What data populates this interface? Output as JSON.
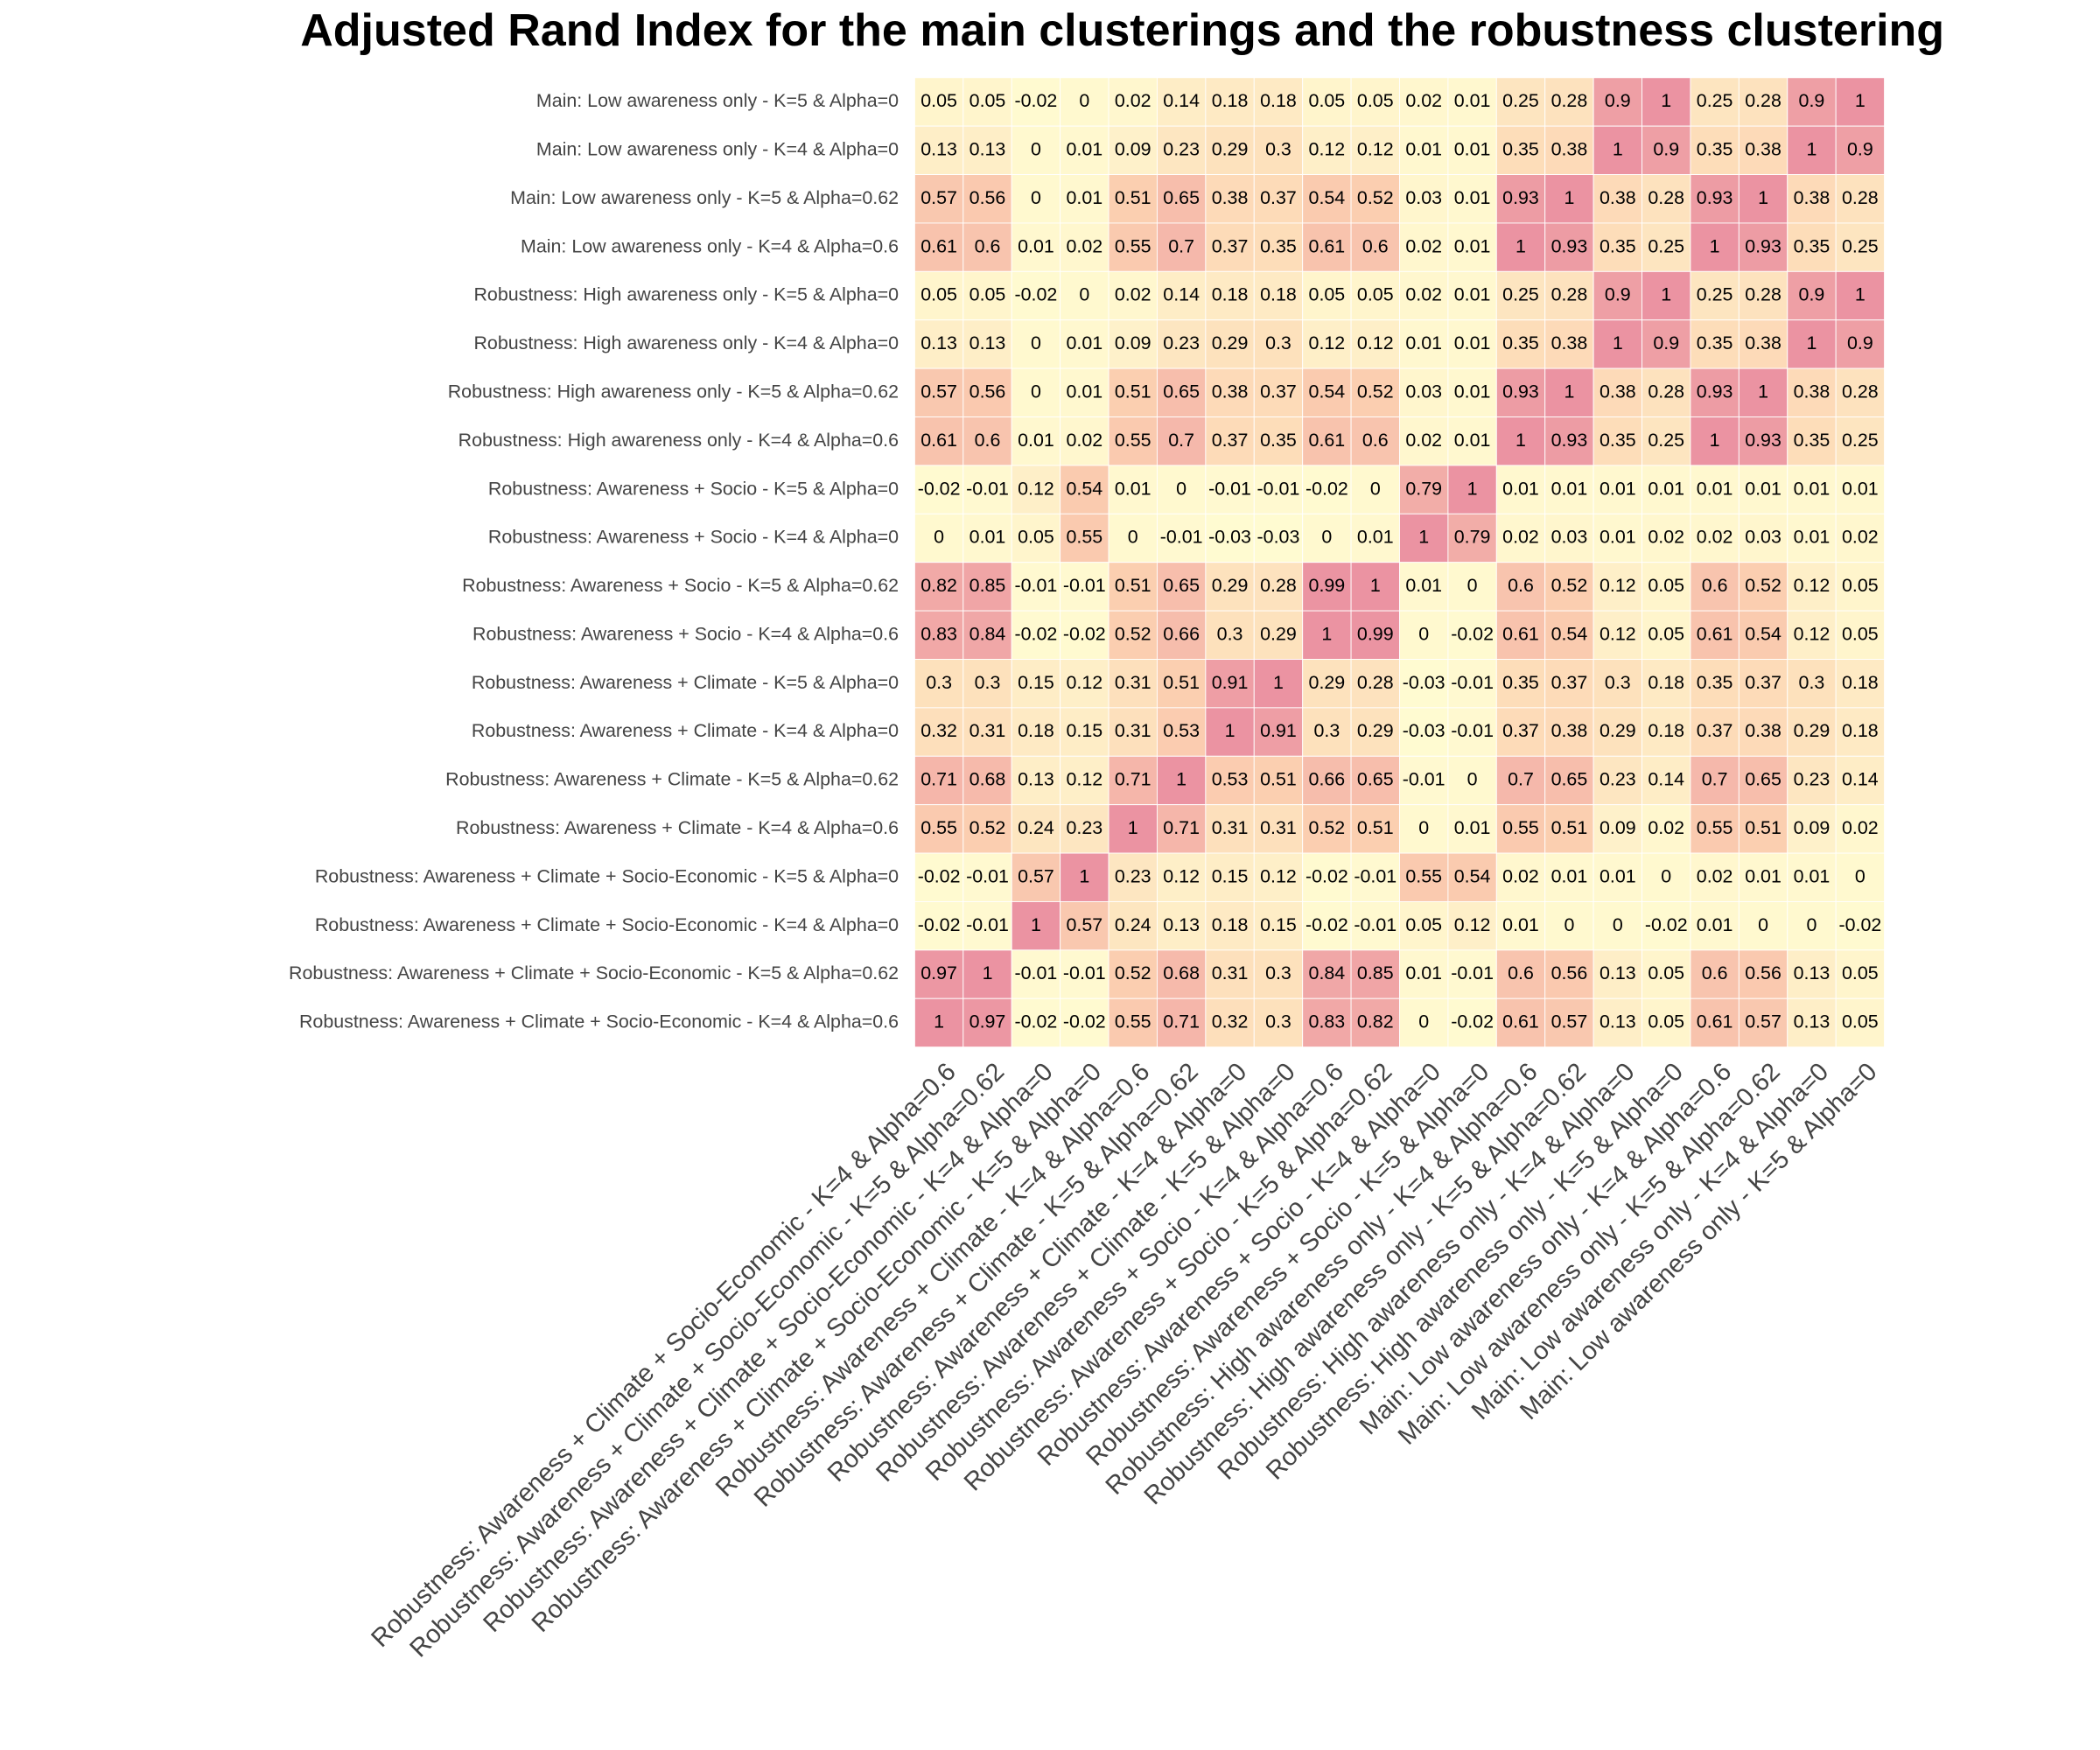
{
  "chart_data": {
    "type": "heatmap",
    "title": "Adjusted Rand Index for the main clusterings and the robustness clustering",
    "y": [
      "Main: Low awareness only - K=5 & Alpha=0",
      "Main: Low awareness only - K=4 & Alpha=0",
      "Main: Low awareness only - K=5 & Alpha=0.62",
      "Main: Low awareness only - K=4 & Alpha=0.6",
      "Robustness: High awareness only - K=5 & Alpha=0",
      "Robustness: High awareness only - K=4 & Alpha=0",
      "Robustness: High awareness only - K=5 & Alpha=0.62",
      "Robustness: High awareness only - K=4 & Alpha=0.6",
      "Robustness: Awareness + Socio - K=5 & Alpha=0",
      "Robustness: Awareness + Socio - K=4 & Alpha=0",
      "Robustness: Awareness + Socio - K=5 & Alpha=0.62",
      "Robustness: Awareness + Socio - K=4 & Alpha=0.6",
      "Robustness: Awareness + Climate - K=5 & Alpha=0",
      "Robustness: Awareness + Climate - K=4 & Alpha=0",
      "Robustness: Awareness + Climate - K=5 & Alpha=0.62",
      "Robustness: Awareness + Climate - K=4 & Alpha=0.6",
      "Robustness: Awareness + Climate + Socio-Economic - K=5 & Alpha=0",
      "Robustness: Awareness + Climate + Socio-Economic - K=4 & Alpha=0",
      "Robustness: Awareness + Climate + Socio-Economic - K=5 & Alpha=0.62",
      "Robustness: Awareness + Climate + Socio-Economic - K=4 & Alpha=0.6"
    ],
    "x": [
      "Robustness: Awareness + Climate + Socio-Economic - K=4 & Alpha=0.6",
      "Robustness: Awareness + Climate + Socio-Economic - K=5 & Alpha=0.62",
      "Robustness: Awareness + Climate + Socio-Economic - K=4 & Alpha=0",
      "Robustness: Awareness + Climate + Socio-Economic - K=5 & Alpha=0",
      "Robustness: Awareness + Climate - K=4 & Alpha=0.6",
      "Robustness: Awareness + Climate - K=5 & Alpha=0.62",
      "Robustness: Awareness + Climate - K=4 & Alpha=0",
      "Robustness: Awareness + Climate - K=5 & Alpha=0",
      "Robustness: Awareness + Socio - K=4 & Alpha=0.6",
      "Robustness: Awareness + Socio - K=5 & Alpha=0.62",
      "Robustness: Awareness + Socio - K=4 & Alpha=0",
      "Robustness: Awareness + Socio - K=5 & Alpha=0",
      "Robustness: High awareness only - K=4 & Alpha=0.6",
      "Robustness: High awareness only - K=5 & Alpha=0.62",
      "Robustness: High awareness only - K=4 & Alpha=0",
      "Robustness: High awareness only - K=5 & Alpha=0",
      "Main: Low awareness only - K=4 & Alpha=0.6",
      "Main: Low awareness only - K=5 & Alpha=0.62",
      "Main: Low awareness only - K=4 & Alpha=0",
      "Main: Low awareness only - K=5 & Alpha=0"
    ],
    "values": [
      [
        0.05,
        0.05,
        -0.02,
        0,
        0.02,
        0.14,
        0.18,
        0.18,
        0.05,
        0.05,
        0.02,
        0.01,
        0.25,
        0.28,
        0.9,
        1,
        0.25,
        0.28,
        0.9,
        1
      ],
      [
        0.13,
        0.13,
        0,
        0.01,
        0.09,
        0.23,
        0.29,
        0.3,
        0.12,
        0.12,
        0.01,
        0.01,
        0.35,
        0.38,
        1,
        0.9,
        0.35,
        0.38,
        1,
        0.9
      ],
      [
        0.57,
        0.56,
        0,
        0.01,
        0.51,
        0.65,
        0.38,
        0.37,
        0.54,
        0.52,
        0.03,
        0.01,
        0.93,
        1,
        0.38,
        0.28,
        0.93,
        1,
        0.38,
        0.28
      ],
      [
        0.61,
        0.6,
        0.01,
        0.02,
        0.55,
        0.7,
        0.37,
        0.35,
        0.61,
        0.6,
        0.02,
        0.01,
        1,
        0.93,
        0.35,
        0.25,
        1,
        0.93,
        0.35,
        0.25
      ],
      [
        0.05,
        0.05,
        -0.02,
        0,
        0.02,
        0.14,
        0.18,
        0.18,
        0.05,
        0.05,
        0.02,
        0.01,
        0.25,
        0.28,
        0.9,
        1,
        0.25,
        0.28,
        0.9,
        1
      ],
      [
        0.13,
        0.13,
        0,
        0.01,
        0.09,
        0.23,
        0.29,
        0.3,
        0.12,
        0.12,
        0.01,
        0.01,
        0.35,
        0.38,
        1,
        0.9,
        0.35,
        0.38,
        1,
        0.9
      ],
      [
        0.57,
        0.56,
        0,
        0.01,
        0.51,
        0.65,
        0.38,
        0.37,
        0.54,
        0.52,
        0.03,
        0.01,
        0.93,
        1,
        0.38,
        0.28,
        0.93,
        1,
        0.38,
        0.28
      ],
      [
        0.61,
        0.6,
        0.01,
        0.02,
        0.55,
        0.7,
        0.37,
        0.35,
        0.61,
        0.6,
        0.02,
        0.01,
        1,
        0.93,
        0.35,
        0.25,
        1,
        0.93,
        0.35,
        0.25
      ],
      [
        -0.02,
        -0.01,
        0.12,
        0.54,
        0.01,
        0,
        -0.01,
        -0.01,
        -0.02,
        0,
        0.79,
        1,
        0.01,
        0.01,
        0.01,
        0.01,
        0.01,
        0.01,
        0.01,
        0.01
      ],
      [
        0,
        0.01,
        0.05,
        0.55,
        0,
        -0.01,
        -0.03,
        -0.03,
        0,
        0.01,
        1,
        0.79,
        0.02,
        0.03,
        0.01,
        0.02,
        0.02,
        0.03,
        0.01,
        0.02
      ],
      [
        0.82,
        0.85,
        -0.01,
        -0.01,
        0.51,
        0.65,
        0.29,
        0.28,
        0.99,
        1,
        0.01,
        0,
        0.6,
        0.52,
        0.12,
        0.05,
        0.6,
        0.52,
        0.12,
        0.05
      ],
      [
        0.83,
        0.84,
        -0.02,
        -0.02,
        0.52,
        0.66,
        0.3,
        0.29,
        1,
        0.99,
        0,
        -0.02,
        0.61,
        0.54,
        0.12,
        0.05,
        0.61,
        0.54,
        0.12,
        0.05
      ],
      [
        0.3,
        0.3,
        0.15,
        0.12,
        0.31,
        0.51,
        0.91,
        1,
        0.29,
        0.28,
        -0.03,
        -0.01,
        0.35,
        0.37,
        0.3,
        0.18,
        0.35,
        0.37,
        0.3,
        0.18
      ],
      [
        0.32,
        0.31,
        0.18,
        0.15,
        0.31,
        0.53,
        1,
        0.91,
        0.3,
        0.29,
        -0.03,
        -0.01,
        0.37,
        0.38,
        0.29,
        0.18,
        0.37,
        0.38,
        0.29,
        0.18
      ],
      [
        0.71,
        0.68,
        0.13,
        0.12,
        0.71,
        1,
        0.53,
        0.51,
        0.66,
        0.65,
        -0.01,
        0,
        0.7,
        0.65,
        0.23,
        0.14,
        0.7,
        0.65,
        0.23,
        0.14
      ],
      [
        0.55,
        0.52,
        0.24,
        0.23,
        1,
        0.71,
        0.31,
        0.31,
        0.52,
        0.51,
        0,
        0.01,
        0.55,
        0.51,
        0.09,
        0.02,
        0.55,
        0.51,
        0.09,
        0.02
      ],
      [
        -0.02,
        -0.01,
        0.57,
        1,
        0.23,
        0.12,
        0.15,
        0.12,
        -0.02,
        -0.01,
        0.55,
        0.54,
        0.02,
        0.01,
        0.01,
        0,
        0.02,
        0.01,
        0.01,
        0
      ],
      [
        -0.02,
        -0.01,
        1,
        0.57,
        0.24,
        0.13,
        0.18,
        0.15,
        -0.02,
        -0.01,
        0.05,
        0.12,
        0.01,
        0,
        0,
        -0.02,
        0.01,
        0,
        0,
        -0.02
      ],
      [
        0.97,
        1,
        -0.01,
        -0.01,
        0.52,
        0.68,
        0.31,
        0.3,
        0.84,
        0.85,
        0.01,
        -0.01,
        0.6,
        0.56,
        0.13,
        0.05,
        0.6,
        0.56,
        0.13,
        0.05
      ],
      [
        1,
        0.97,
        -0.02,
        -0.02,
        0.55,
        0.71,
        0.32,
        0.3,
        0.83,
        0.82,
        0,
        -0.02,
        0.61,
        0.57,
        0.13,
        0.05,
        0.61,
        0.57,
        0.13,
        0.05
      ]
    ],
    "colors": [
      "#fffbd1",
      "#fcd2b1",
      "#eb93a2"
    ]
  }
}
